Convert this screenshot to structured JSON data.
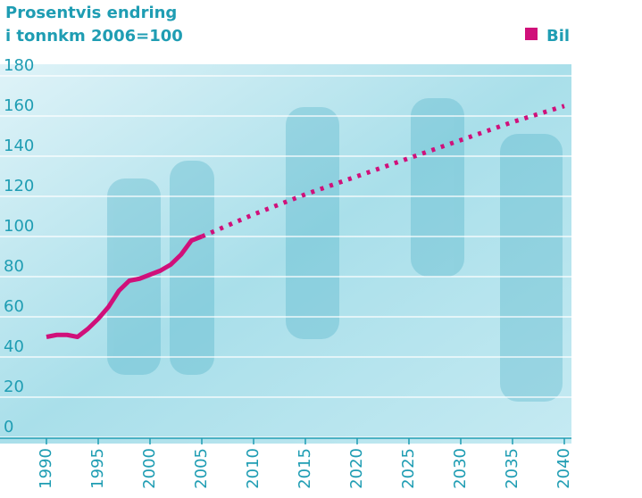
{
  "chart_data": {
    "type": "line",
    "title": "Prosentvis endring",
    "subtitle": "i tonnkm  2006=100",
    "x": [
      1990,
      1991,
      1992,
      1993,
      1994,
      1995,
      1996,
      1997,
      1998,
      1999,
      2000,
      2001,
      2002,
      2003,
      2004,
      2005,
      2010,
      2015,
      2020,
      2025,
      2030,
      2035,
      2040
    ],
    "series": [
      {
        "name": "Bil",
        "color": "#d0107a",
        "values": [
          50,
          51,
          51,
          50,
          54,
          59,
          65,
          73,
          78,
          79,
          81,
          83,
          86,
          91,
          98,
          100,
          111,
          121,
          130,
          139,
          148,
          157,
          165
        ]
      }
    ],
    "dashed_from": 2005,
    "xlim": [
      1990,
      2040
    ],
    "xticks": [
      1990,
      1995,
      2000,
      2005,
      2010,
      2015,
      2020,
      2025,
      2030,
      2035,
      2040
    ],
    "ylim": [
      0,
      180
    ],
    "yticks": [
      0,
      20,
      40,
      60,
      80,
      100,
      120,
      140,
      160,
      180
    ],
    "grid": true,
    "legend": "top-right"
  }
}
